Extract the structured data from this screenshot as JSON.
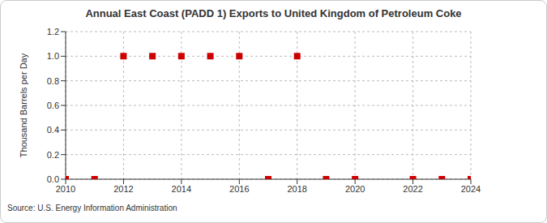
{
  "chart_data": {
    "type": "scatter",
    "title": "Annual East Coast (PADD 1) Exports to United Kingdom of Petroleum Coke",
    "y_label": "Thousand Barrels per Day",
    "source": "Source: U.S. Energy Information Administration",
    "x": [
      2010,
      2011,
      2012,
      2013,
      2014,
      2015,
      2016,
      2017,
      2018,
      2019,
      2020,
      2022,
      2023,
      2024
    ],
    "values": [
      0,
      0,
      1,
      1,
      1,
      1,
      1,
      0,
      1,
      0,
      0,
      0,
      0,
      0
    ],
    "color": "#cc0000",
    "marker": "square",
    "xlim": [
      2010,
      2024
    ],
    "xticks": [
      2010,
      2012,
      2014,
      2016,
      2018,
      2020,
      2022,
      2024
    ],
    "ylim": [
      0,
      1.2
    ],
    "yticks": [
      {
        "value": 0,
        "label": "0.0"
      },
      {
        "value": 0.2,
        "label": "0.2"
      },
      {
        "value": 0.4,
        "label": "0.4"
      },
      {
        "value": 0.6,
        "label": "0.6"
      },
      {
        "value": 0.8,
        "label": "0.8"
      },
      {
        "value": 1,
        "label": "1.0"
      },
      {
        "value": 1.2,
        "label": "1.2"
      }
    ],
    "grid": true
  }
}
